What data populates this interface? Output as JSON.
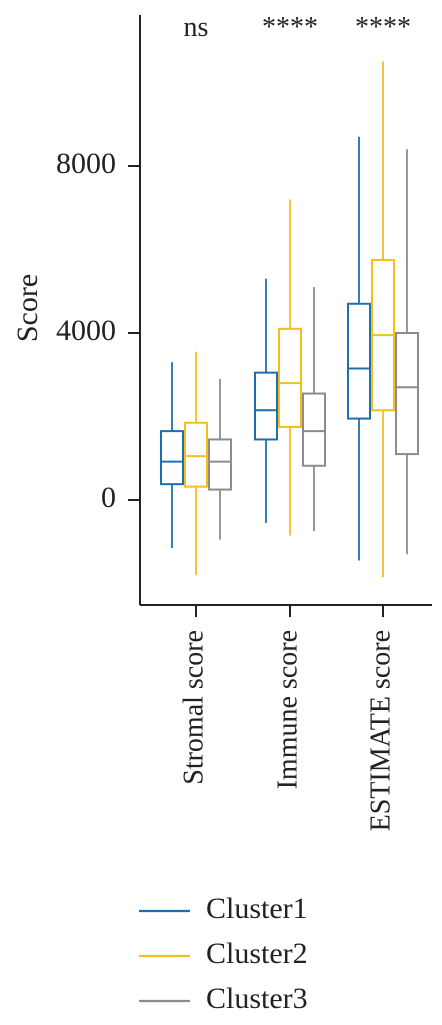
{
  "chart_data": {
    "type": "boxplot",
    "ylabel": "Score",
    "yticks": [
      0,
      4000,
      8000
    ],
    "ylim": [
      -2500,
      11500
    ],
    "categories": [
      "Stromal score",
      "Immune score",
      "ESTIMATE score"
    ],
    "significance": [
      "ns",
      "****",
      "****"
    ],
    "series": [
      {
        "name": "Cluster1",
        "color": "#1f6fb0",
        "boxes": [
          {
            "min": -1150,
            "q1": 380,
            "median": 920,
            "q3": 1650,
            "max": 3300
          },
          {
            "min": -550,
            "q1": 1450,
            "median": 2150,
            "q3": 3050,
            "max": 5300
          },
          {
            "min": -1450,
            "q1": 1950,
            "median": 3150,
            "q3": 4700,
            "max": 8700
          }
        ]
      },
      {
        "name": "Cluster2",
        "color": "#f2bf1f",
        "boxes": [
          {
            "min": -1800,
            "q1": 320,
            "median": 1050,
            "q3": 1850,
            "max": 3550
          },
          {
            "min": -850,
            "q1": 1750,
            "median": 2800,
            "q3": 4100,
            "max": 7200
          },
          {
            "min": -1850,
            "q1": 2150,
            "median": 3950,
            "q3": 5750,
            "max": 10500
          }
        ]
      },
      {
        "name": "Cluster3",
        "color": "#8c8c8c",
        "boxes": [
          {
            "min": -950,
            "q1": 250,
            "median": 920,
            "q3": 1450,
            "max": 2900
          },
          {
            "min": -750,
            "q1": 820,
            "median": 1650,
            "q3": 2550,
            "max": 5100
          },
          {
            "min": -1300,
            "q1": 1100,
            "median": 2700,
            "q3": 4000,
            "max": 8400
          }
        ]
      }
    ],
    "legend": [
      "Cluster1",
      "Cluster2",
      "Cluster3"
    ],
    "legend_position": "bottom"
  }
}
